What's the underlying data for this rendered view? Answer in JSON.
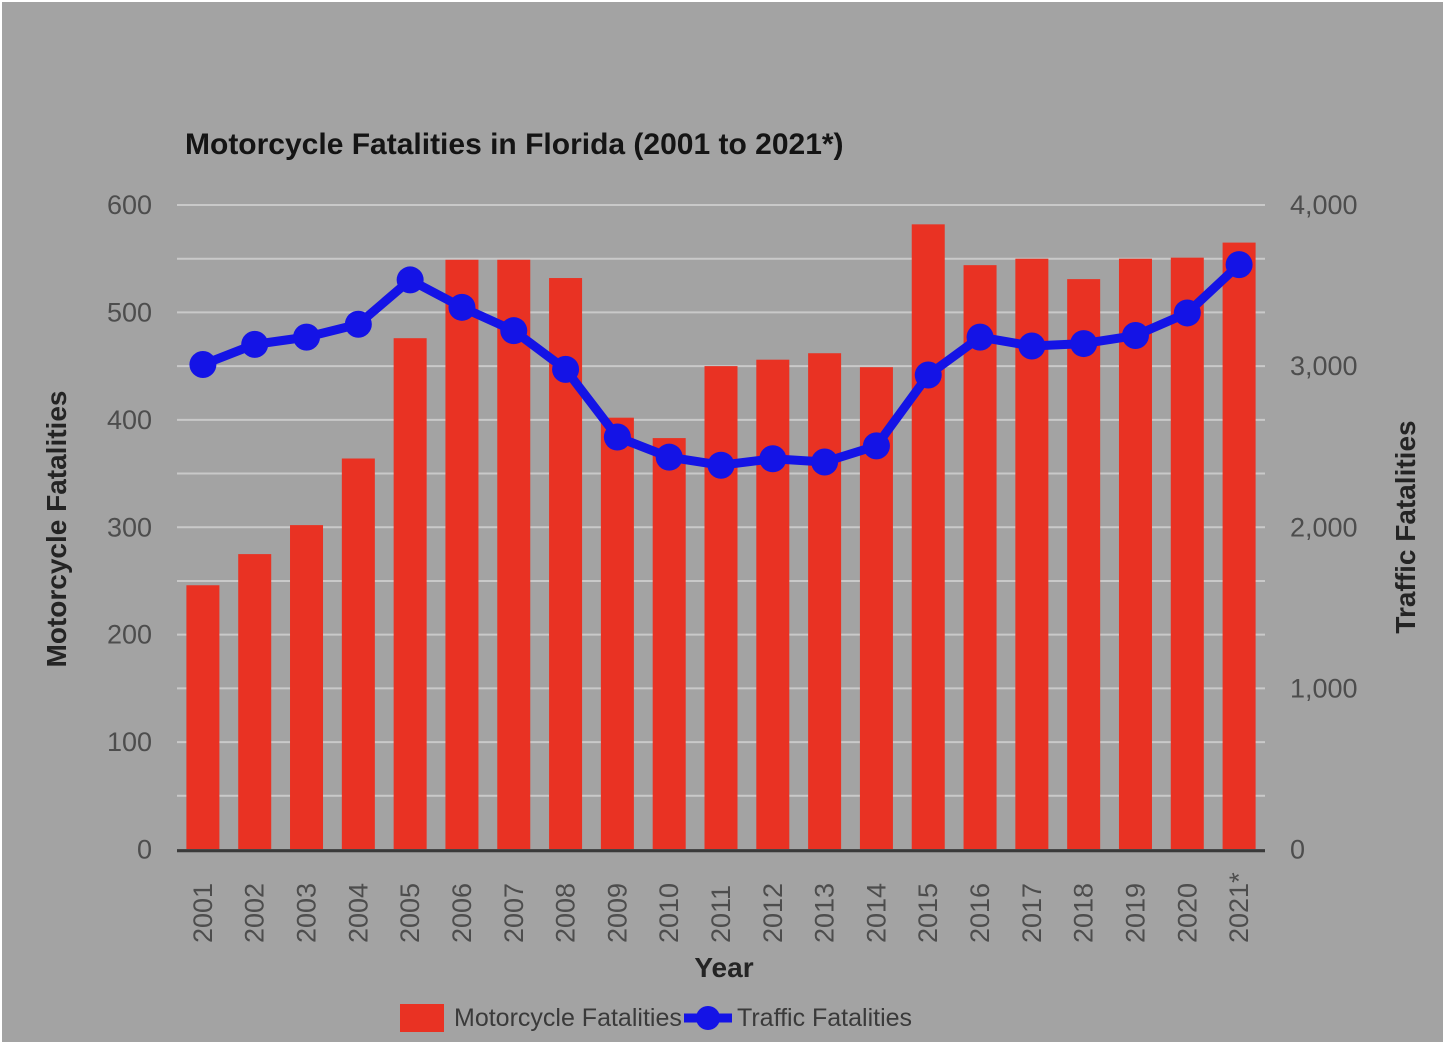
{
  "colors": {
    "background": "#a3a3a3",
    "page_border": "#ffffff",
    "bar": "#e93223",
    "line": "#1413e6",
    "grid": "#c9c9c9",
    "axis_line": "#3a3a3a",
    "tick_text": "#4d4d4d"
  },
  "chart_data": {
    "type": "combo-bar-line",
    "title": "Motorcycle Fatalities in Florida (2001 to 2021*)",
    "xlabel": "Year",
    "left_ylabel": "Motorcycle Fatalities",
    "right_ylabel": "Traffic Fatalities",
    "categories": [
      "2001",
      "2002",
      "2003",
      "2004",
      "2005",
      "2006",
      "2007",
      "2008",
      "2009",
      "2010",
      "2011",
      "2012",
      "2013",
      "2014",
      "2015",
      "2016",
      "2017",
      "2018",
      "2019",
      "2020",
      "2021*"
    ],
    "series": [
      {
        "name": "Motorcycle Fatalities",
        "type": "bar",
        "axis": "left",
        "values": [
          246,
          275,
          302,
          364,
          476,
          549,
          549,
          532,
          402,
          383,
          450,
          456,
          462,
          449,
          582,
          544,
          550,
          531,
          550,
          551,
          565
        ]
      },
      {
        "name": "Traffic Fatalities",
        "type": "line",
        "axis": "right",
        "values": [
          3010,
          3135,
          3180,
          3260,
          3535,
          3365,
          3220,
          2980,
          2560,
          2435,
          2385,
          2425,
          2405,
          2505,
          2945,
          3180,
          3125,
          3140,
          3190,
          3330,
          3630
        ]
      }
    ],
    "left_ylim": [
      0,
      600
    ],
    "right_ylim": [
      0,
      4000
    ],
    "left_ticks": [
      {
        "value": 0,
        "label": "0"
      },
      {
        "value": 100,
        "label": "100"
      },
      {
        "value": 200,
        "label": "200"
      },
      {
        "value": 300,
        "label": "300"
      },
      {
        "value": 400,
        "label": "400"
      },
      {
        "value": 500,
        "label": "500"
      },
      {
        "value": 600,
        "label": "600"
      }
    ],
    "right_ticks": [
      {
        "value": 0,
        "label": "0"
      },
      {
        "value": 1000,
        "label": "1,000"
      },
      {
        "value": 2000,
        "label": "2,000"
      },
      {
        "value": 3000,
        "label": "3,000"
      },
      {
        "value": 4000,
        "label": "4,000"
      }
    ],
    "grid": true,
    "grid_step": 50,
    "legend_position": "bottom"
  }
}
